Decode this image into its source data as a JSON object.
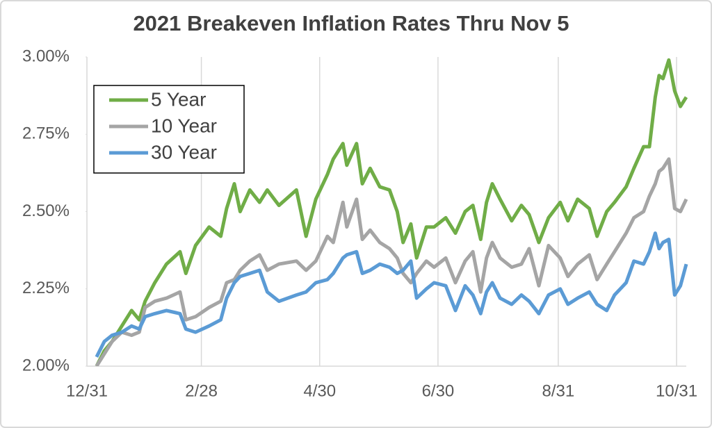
{
  "chart_data": {
    "type": "line",
    "title": "2021 Breakeven Inflation Rates Thru Nov 5",
    "x": [
      "1/5",
      "1/9",
      "1/13",
      "1/18",
      "1/23",
      "1/27",
      "1/30",
      "2/4",
      "2/10",
      "2/17",
      "2/20",
      "2/25",
      "3/4",
      "3/10",
      "3/13",
      "3/17",
      "3/20",
      "3/25",
      "3/30",
      "4/3",
      "4/9",
      "4/18",
      "4/23",
      "4/28",
      "5/4",
      "5/7",
      "5/12",
      "5/14",
      "5/19",
      "5/22",
      "5/26",
      "5/31",
      "6/5",
      "6/9",
      "6/12",
      "6/16",
      "6/19",
      "6/24",
      "6/28",
      "7/4",
      "7/9",
      "7/14",
      "7/18",
      "7/22",
      "7/25",
      "7/28",
      "8/1",
      "8/7",
      "8/12",
      "8/16",
      "8/21",
      "8/26",
      "9/1",
      "9/5",
      "9/10",
      "9/16",
      "9/20",
      "9/25",
      "9/29",
      "10/5",
      "10/9",
      "10/14",
      "10/17",
      "10/20",
      "10/22",
      "10/24",
      "10/27",
      "10/30",
      "11/2",
      "11/5"
    ],
    "series": [
      {
        "name": "5 Year",
        "color": "#70ad47",
        "values": [
          2.0,
          2.05,
          2.08,
          2.13,
          2.18,
          2.15,
          2.21,
          2.27,
          2.33,
          2.37,
          2.3,
          2.39,
          2.45,
          2.42,
          2.51,
          2.59,
          2.5,
          2.57,
          2.53,
          2.57,
          2.52,
          2.57,
          2.42,
          2.54,
          2.62,
          2.67,
          2.72,
          2.65,
          2.72,
          2.59,
          2.64,
          2.58,
          2.57,
          2.5,
          2.4,
          2.46,
          2.35,
          2.45,
          2.45,
          2.48,
          2.43,
          2.5,
          2.52,
          2.41,
          2.53,
          2.59,
          2.54,
          2.47,
          2.52,
          2.49,
          2.4,
          2.48,
          2.53,
          2.47,
          2.54,
          2.51,
          2.42,
          2.5,
          2.53,
          2.58,
          2.64,
          2.71,
          2.71,
          2.87,
          2.94,
          2.93,
          2.99,
          2.89,
          2.84,
          2.87
        ]
      },
      {
        "name": "10 Year",
        "color": "#a5a5a5",
        "values": [
          2.0,
          2.04,
          2.08,
          2.11,
          2.1,
          2.11,
          2.19,
          2.21,
          2.22,
          2.24,
          2.15,
          2.16,
          2.19,
          2.21,
          2.27,
          2.28,
          2.31,
          2.34,
          2.36,
          2.31,
          2.33,
          2.34,
          2.31,
          2.34,
          2.42,
          2.4,
          2.53,
          2.45,
          2.54,
          2.41,
          2.44,
          2.4,
          2.38,
          2.35,
          2.3,
          2.27,
          2.3,
          2.34,
          2.32,
          2.35,
          2.27,
          2.34,
          2.37,
          2.24,
          2.35,
          2.4,
          2.35,
          2.32,
          2.33,
          2.38,
          2.26,
          2.39,
          2.35,
          2.29,
          2.33,
          2.36,
          2.28,
          2.33,
          2.37,
          2.43,
          2.48,
          2.5,
          2.55,
          2.59,
          2.63,
          2.64,
          2.67,
          2.51,
          2.5,
          2.54
        ]
      },
      {
        "name": "30 Year",
        "color": "#5b9bd5",
        "values": [
          2.03,
          2.08,
          2.1,
          2.11,
          2.13,
          2.12,
          2.16,
          2.17,
          2.18,
          2.17,
          2.12,
          2.11,
          2.13,
          2.15,
          2.22,
          2.27,
          2.29,
          2.3,
          2.31,
          2.24,
          2.21,
          2.23,
          2.24,
          2.27,
          2.28,
          2.3,
          2.35,
          2.36,
          2.37,
          2.3,
          2.31,
          2.33,
          2.32,
          2.3,
          2.31,
          2.34,
          2.22,
          2.25,
          2.27,
          2.26,
          2.18,
          2.26,
          2.23,
          2.17,
          2.24,
          2.27,
          2.22,
          2.2,
          2.23,
          2.21,
          2.17,
          2.23,
          2.25,
          2.2,
          2.22,
          2.24,
          2.2,
          2.18,
          2.23,
          2.27,
          2.34,
          2.33,
          2.37,
          2.43,
          2.38,
          2.4,
          2.41,
          2.23,
          2.26,
          2.33
        ]
      }
    ],
    "xlim": [
      "12/31",
      "11/5"
    ],
    "xticks": [
      "12/31",
      "2/28",
      "4/30",
      "6/30",
      "8/31",
      "10/31"
    ],
    "ylim": [
      2,
      3
    ],
    "yticks": [
      {
        "value": 2,
        "label": "2.00%"
      },
      {
        "value": 2.25,
        "label": "2.25%"
      },
      {
        "value": 2.5,
        "label": "2.50%"
      },
      {
        "value": 2.75,
        "label": "2.75%"
      },
      {
        "value": 3,
        "label": "3.00%"
      }
    ],
    "grid": "x",
    "legend": "upper left"
  }
}
